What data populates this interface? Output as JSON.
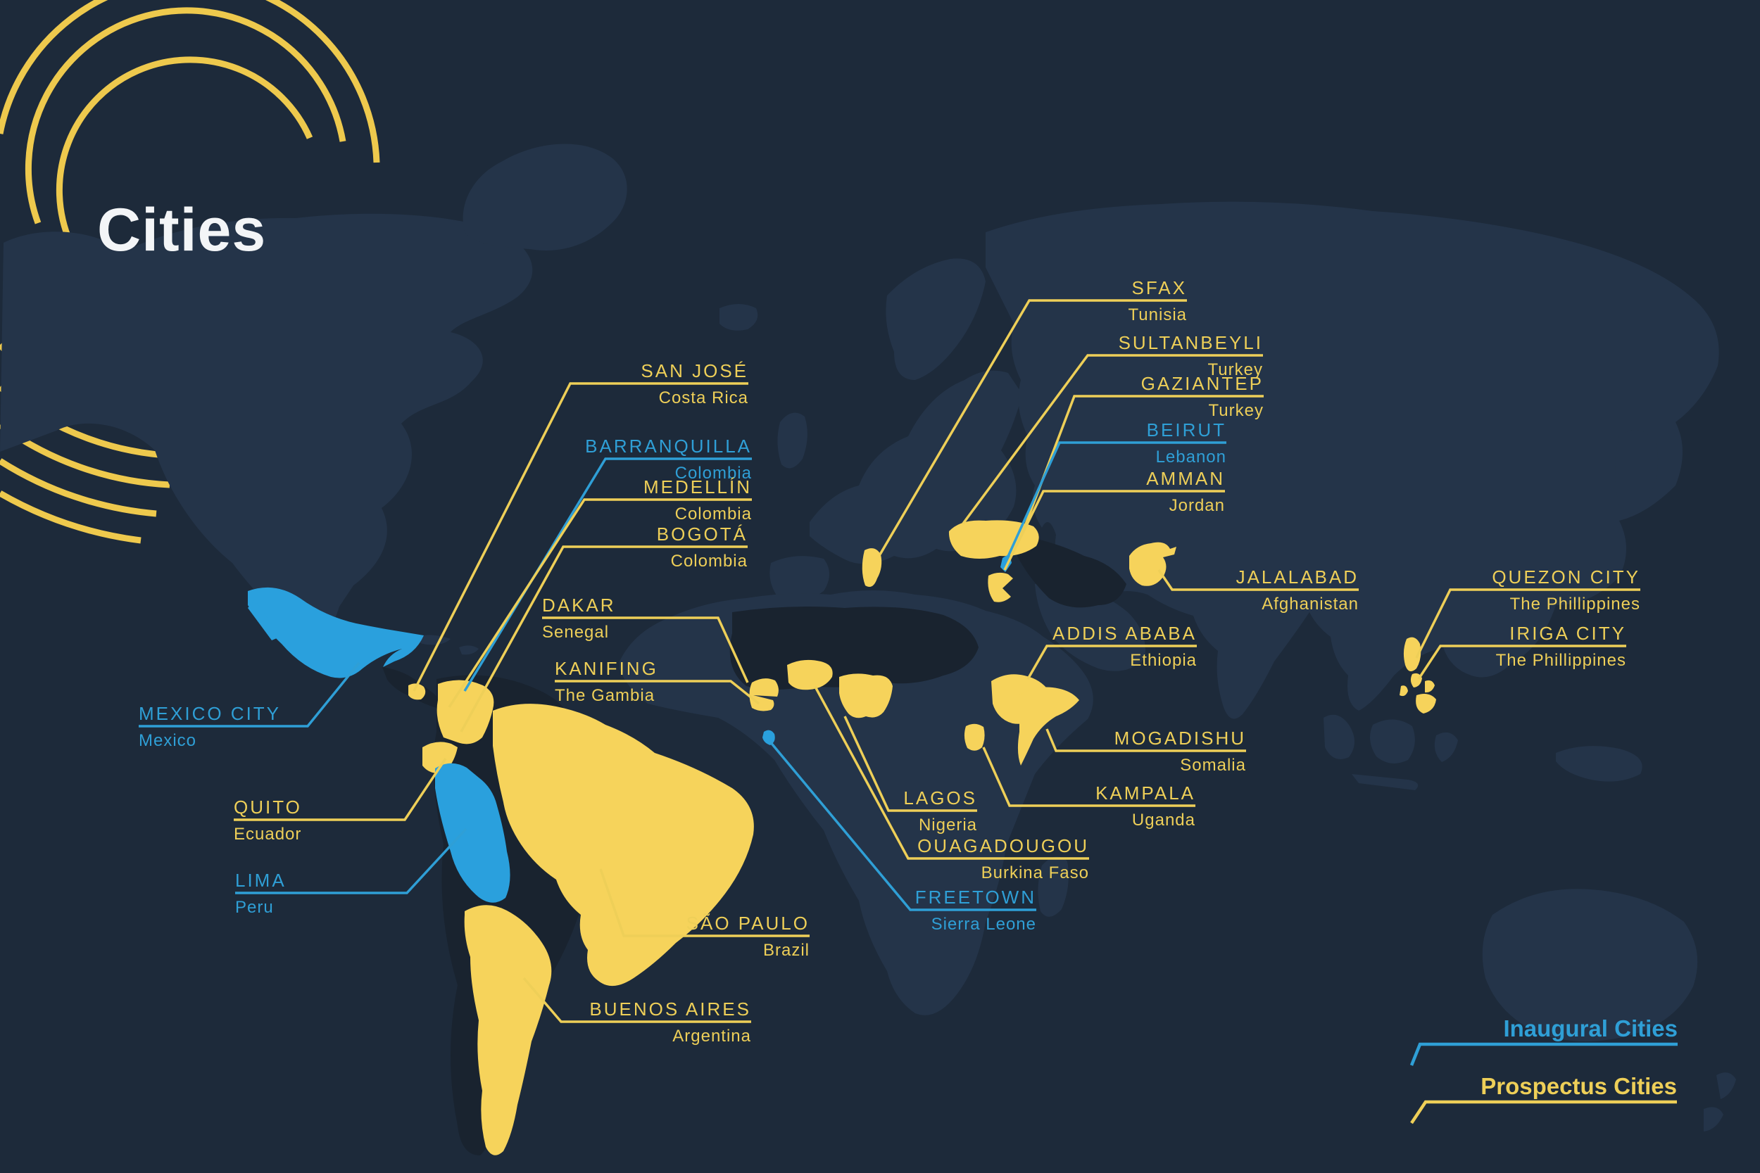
{
  "title": "Cities",
  "legend": {
    "items": [
      {
        "id": "inaugural",
        "label": "Inaugural Cities",
        "category": "inaugural",
        "color": "#2f9fd6"
      },
      {
        "id": "prospectus",
        "label": "Prospectus Cities",
        "category": "prospectus",
        "color": "#eecf58"
      }
    ]
  },
  "colors": {
    "background": "#1d2a3a",
    "land": "#243449",
    "land_shadow": "#19232f",
    "highlight_yellow": "#f6d35b",
    "highlight_blue": "#2aa0dd",
    "label_yellow": "#eecf58",
    "label_blue": "#2f9fd6",
    "title_white": "#f3f5f7",
    "arc_yellow": "#eec94d"
  },
  "cities": [
    {
      "id": "san-jose",
      "city": "SAN JOSÉ",
      "country": "Costa Rica",
      "category": "prospectus"
    },
    {
      "id": "barranquilla",
      "city": "BARRANQUILLA",
      "country": "Colombia",
      "category": "inaugural"
    },
    {
      "id": "medellin",
      "city": "MEDELLÍN",
      "country": "Colombia",
      "category": "prospectus"
    },
    {
      "id": "bogota",
      "city": "BOGOTÁ",
      "country": "Colombia",
      "category": "prospectus"
    },
    {
      "id": "dakar",
      "city": "DAKAR",
      "country": "Senegal",
      "category": "prospectus"
    },
    {
      "id": "kanifing",
      "city": "KANIFING",
      "country": "The Gambia",
      "category": "prospectus"
    },
    {
      "id": "mexico-city",
      "city": "MEXICO CITY",
      "country": "Mexico",
      "category": "inaugural"
    },
    {
      "id": "quito",
      "city": "QUITO",
      "country": "Ecuador",
      "category": "prospectus"
    },
    {
      "id": "lima",
      "city": "LIMA",
      "country": "Peru",
      "category": "inaugural"
    },
    {
      "id": "sao-paulo",
      "city": "SÃO PAULO",
      "country": "Brazil",
      "category": "prospectus"
    },
    {
      "id": "buenos-aires",
      "city": "BUENOS AIRES",
      "country": "Argentina",
      "category": "prospectus"
    },
    {
      "id": "sfax",
      "city": "SFAX",
      "country": "Tunisia",
      "category": "prospectus"
    },
    {
      "id": "sultanbeyli",
      "city": "SULTANBEYLI",
      "country": "Turkey",
      "category": "prospectus"
    },
    {
      "id": "gaziantep",
      "city": "GAZIANTEP",
      "country": "Turkey",
      "category": "prospectus"
    },
    {
      "id": "beirut",
      "city": "BEIRUT",
      "country": "Lebanon",
      "category": "inaugural"
    },
    {
      "id": "amman",
      "city": "AMMAN",
      "country": "Jordan",
      "category": "prospectus"
    },
    {
      "id": "jalalabad",
      "city": "JALALABAD",
      "country": "Afghanistan",
      "category": "prospectus"
    },
    {
      "id": "addis-ababa",
      "city": "ADDIS ABABA",
      "country": "Ethiopia",
      "category": "prospectus"
    },
    {
      "id": "mogadishu",
      "city": "MOGADISHU",
      "country": "Somalia",
      "category": "prospectus"
    },
    {
      "id": "kampala",
      "city": "KAMPALA",
      "country": "Uganda",
      "category": "prospectus"
    },
    {
      "id": "lagos",
      "city": "LAGOS",
      "country": "Nigeria",
      "category": "prospectus"
    },
    {
      "id": "ouagadougou",
      "city": "OUAGADOUGOU",
      "country": "Burkina Faso",
      "category": "prospectus"
    },
    {
      "id": "freetown",
      "city": "FREETOWN",
      "country": "Sierra Leone",
      "category": "inaugural"
    },
    {
      "id": "quezon-city",
      "city": "QUEZON CITY",
      "country": "The Phillippines",
      "category": "prospectus"
    },
    {
      "id": "iriga-city",
      "city": "IRIGA CITY",
      "country": "The Phillippines",
      "category": "prospectus"
    }
  ]
}
